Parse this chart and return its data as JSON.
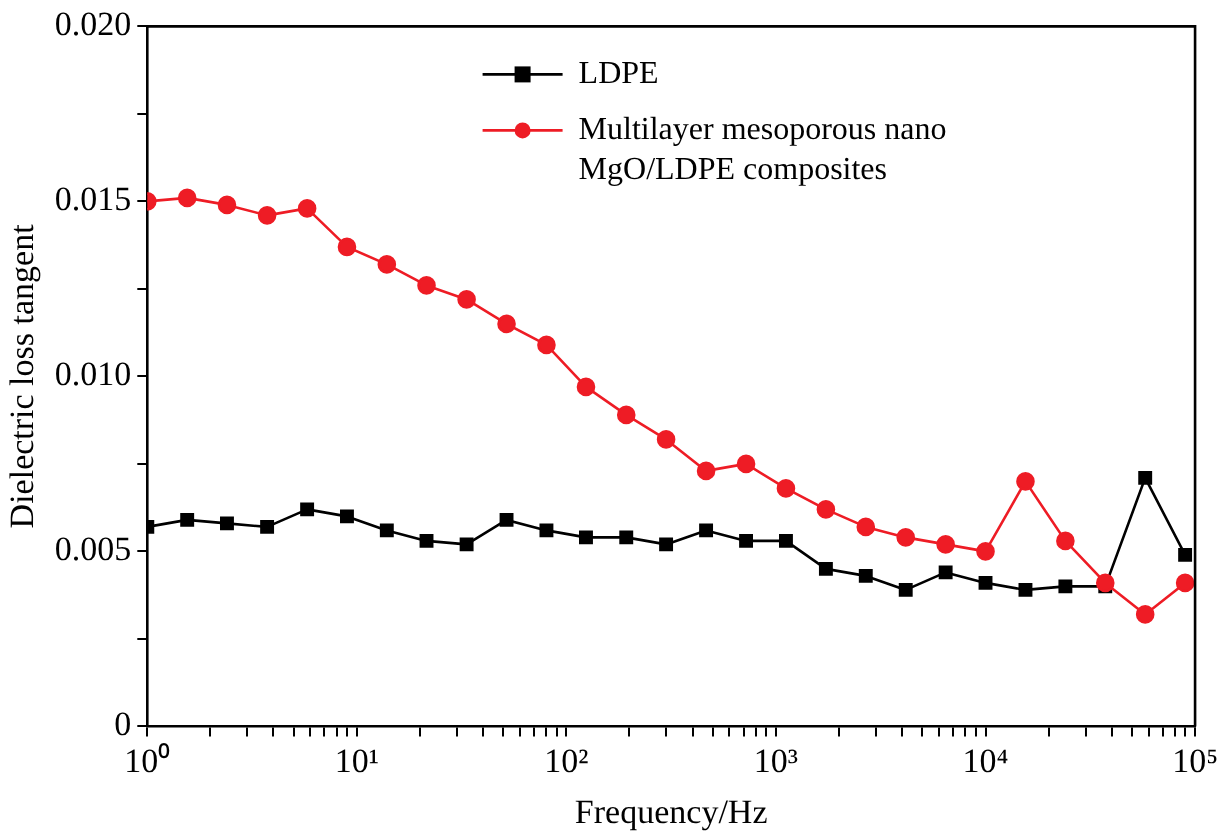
{
  "chart_data": {
    "type": "line",
    "xlabel": "Frequency/Hz",
    "ylabel": "Dielectric loss tangent",
    "log": "x",
    "grid": false,
    "legend": "top",
    "line_style": "solid",
    "xlim": [
      1,
      100000
    ],
    "xticks": [
      {
        "value": 1,
        "label": "10⁰"
      },
      {
        "value": 2,
        "label": null
      },
      {
        "value": 3,
        "label": null
      },
      {
        "value": 4,
        "label": null
      },
      {
        "value": 5,
        "label": null
      },
      {
        "value": 6,
        "label": null
      },
      {
        "value": 7,
        "label": null
      },
      {
        "value": 8,
        "label": null
      },
      {
        "value": 9,
        "label": null
      },
      {
        "value": 10,
        "label": "10¹"
      },
      {
        "value": 20,
        "label": null
      },
      {
        "value": 30,
        "label": null
      },
      {
        "value": 40,
        "label": null
      },
      {
        "value": 50,
        "label": null
      },
      {
        "value": 60,
        "label": null
      },
      {
        "value": 70,
        "label": null
      },
      {
        "value": 80,
        "label": null
      },
      {
        "value": 90,
        "label": null
      },
      {
        "value": 100,
        "label": "10²"
      },
      {
        "value": 200,
        "label": null
      },
      {
        "value": 300,
        "label": null
      },
      {
        "value": 400,
        "label": null
      },
      {
        "value": 500,
        "label": null
      },
      {
        "value": 600,
        "label": null
      },
      {
        "value": 700,
        "label": null
      },
      {
        "value": 800,
        "label": null
      },
      {
        "value": 900,
        "label": null
      },
      {
        "value": 1000,
        "label": "10³"
      },
      {
        "value": 2000,
        "label": null
      },
      {
        "value": 3000,
        "label": null
      },
      {
        "value": 4000,
        "label": null
      },
      {
        "value": 5000,
        "label": null
      },
      {
        "value": 6000,
        "label": null
      },
      {
        "value": 7000,
        "label": null
      },
      {
        "value": 8000,
        "label": null
      },
      {
        "value": 9000,
        "label": null
      },
      {
        "value": 10000,
        "label": "10⁴"
      },
      {
        "value": 20000,
        "label": null
      },
      {
        "value": 30000,
        "label": null
      },
      {
        "value": 40000,
        "label": null
      },
      {
        "value": 50000,
        "label": null
      },
      {
        "value": 60000,
        "label": null
      },
      {
        "value": 70000,
        "label": null
      },
      {
        "value": 80000,
        "label": null
      },
      {
        "value": 90000,
        "label": null
      },
      {
        "value": 100000,
        "label": "10⁵"
      }
    ],
    "ylim": [
      0,
      0.02
    ],
    "yticks": [
      0,
      {
        "value": 0.0025,
        "label": null
      },
      0.005,
      {
        "value": 0.0075,
        "label": null
      },
      {
        "value": 0.01,
        "label": "0.010"
      },
      {
        "value": 0.0125,
        "label": null
      },
      0.015,
      {
        "value": 0.0175,
        "label": null
      },
      {
        "value": 0.02,
        "label": "0.020"
      }
    ],
    "x": [
      1,
      1.55,
      2.4,
      3.73,
      5.79,
      8.97,
      13.9,
      21.5,
      33.4,
      51.8,
      80.3,
      124,
      193,
      299,
      464,
      720,
      1116,
      1731,
      2683,
      4161,
      6452,
      10000,
      15510,
      24050,
      37280,
      57810,
      89640
    ],
    "series": [
      {
        "name": "LDPE",
        "color": "#000000",
        "marker": "square",
        "values": [
          0.0057,
          0.0059,
          0.0058,
          0.0057,
          0.0062,
          0.006,
          0.0056,
          0.0053,
          0.0052,
          0.0059,
          0.0056,
          0.0054,
          0.0054,
          0.0052,
          0.0056,
          0.0053,
          0.0053,
          0.0045,
          0.0043,
          0.0039,
          0.0044,
          0.0041,
          0.0039,
          0.004,
          0.004,
          0.0071,
          0.0049
        ]
      },
      {
        "name": "Multilayer mesoporous nano MgO/LDPE composites",
        "color": "#ee1c25",
        "marker": "circle",
        "values": [
          0.015,
          0.0151,
          0.0149,
          0.0146,
          0.0148,
          0.0137,
          0.0132,
          0.0126,
          0.0122,
          0.0115,
          0.0109,
          0.0097,
          0.0089,
          0.0082,
          0.0073,
          0.0075,
          0.0068,
          0.0062,
          0.0057,
          0.0054,
          0.0052,
          0.005,
          0.007,
          0.0053,
          0.0041,
          0.0032,
          0.0041
        ]
      }
    ]
  }
}
